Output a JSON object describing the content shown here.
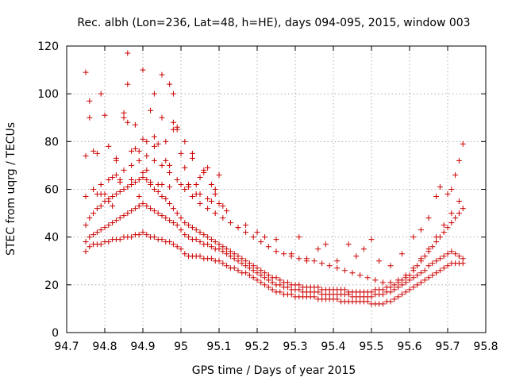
{
  "chart_data": {
    "type": "scatter",
    "title": "Rec. albh (Lon=236, Lat=48, h=HE), days 094-095, 2015, window 003",
    "xlabel": "GPS time / Days of year 2015",
    "ylabel": "STEC from uqrg / TECUs",
    "xlim": [
      94.7,
      95.8
    ],
    "ylim": [
      0,
      120
    ],
    "xticks": [
      "94.7",
      "94.8",
      "94.9",
      "95",
      "95.1",
      "95.2",
      "95.3",
      "95.4",
      "95.5",
      "95.6",
      "95.7",
      "95.8"
    ],
    "yticks": [
      "0",
      "20",
      "40",
      "60",
      "80",
      "100",
      "120"
    ],
    "grid": true,
    "marker": "+",
    "color": "#cc0000",
    "series": [
      {
        "x": [
          94.75,
          94.76,
          94.77,
          94.78,
          94.79,
          94.8,
          94.81,
          94.82,
          94.83,
          94.84,
          94.85,
          94.86,
          94.87,
          94.88,
          94.89,
          94.9,
          94.91,
          94.92,
          94.93,
          94.94,
          94.95,
          94.96,
          94.97,
          94.98,
          94.99,
          95.0,
          95.01,
          95.02,
          95.03,
          95.04,
          95.05,
          95.06,
          95.07,
          95.08,
          95.09,
          95.1,
          95.11,
          95.12,
          95.13,
          95.14,
          95.15,
          95.16,
          95.17,
          95.18,
          95.19,
          95.2,
          95.21,
          95.22,
          95.23,
          95.24,
          95.25,
          95.26,
          95.27,
          95.28,
          95.29,
          95.3,
          95.31,
          95.32,
          95.33,
          95.34,
          95.35,
          95.36,
          95.37,
          95.38,
          95.39,
          95.4,
          95.41,
          95.42,
          95.43,
          95.44,
          95.45,
          95.46,
          95.47,
          95.48,
          95.49,
          95.5,
          95.51,
          95.52,
          95.53,
          95.54,
          95.55,
          95.56,
          95.57,
          95.58,
          95.59,
          95.6,
          95.61,
          95.62,
          95.63,
          95.64,
          95.65,
          95.66,
          95.67,
          95.68,
          95.69,
          95.7,
          95.71,
          95.72,
          95.73,
          95.74
        ],
        "y": [
          34,
          36,
          37,
          37,
          37,
          38,
          38,
          39,
          39,
          39,
          40,
          40,
          40,
          41,
          41,
          42,
          41,
          40,
          40,
          39,
          39,
          38,
          38,
          37,
          36,
          35,
          33,
          32,
          32,
          32,
          32,
          31,
          31,
          31,
          30,
          30,
          29,
          28,
          27,
          27,
          26,
          25,
          25,
          24,
          23,
          22,
          21,
          20,
          19,
          18,
          17,
          17,
          16,
          16,
          16,
          15,
          15,
          15,
          15,
          15,
          15,
          14,
          14,
          14,
          14,
          14,
          14,
          13,
          13,
          13,
          13,
          13,
          13,
          13,
          13,
          12,
          12,
          12,
          12,
          13,
          13,
          14,
          15,
          16,
          17,
          18,
          19,
          20,
          21,
          22,
          23,
          24,
          25,
          26,
          27,
          28,
          29,
          29,
          29,
          29
        ]
      },
      {
        "x": [
          94.75,
          94.76,
          94.77,
          94.78,
          94.79,
          94.8,
          94.81,
          94.82,
          94.83,
          94.84,
          94.85,
          94.86,
          94.87,
          94.88,
          94.89,
          94.9,
          94.91,
          94.92,
          94.93,
          94.94,
          94.95,
          94.96,
          94.97,
          94.98,
          94.99,
          95.0,
          95.01,
          95.02,
          95.03,
          95.04,
          95.05,
          95.06,
          95.07,
          95.08,
          95.09,
          95.1,
          95.11,
          95.12,
          95.13,
          95.14,
          95.15,
          95.16,
          95.17,
          95.18,
          95.19,
          95.2,
          95.21,
          95.22,
          95.23,
          95.24,
          95.25,
          95.26,
          95.27,
          95.28,
          95.29,
          95.3,
          95.31,
          95.32,
          95.33,
          95.34,
          95.35,
          95.36,
          95.37,
          95.38,
          95.39,
          95.4,
          95.41,
          95.42,
          95.43,
          95.44,
          95.45,
          95.46,
          95.47,
          95.48,
          95.49,
          95.5,
          95.51,
          95.52,
          95.53,
          95.54,
          95.55,
          95.56,
          95.57,
          95.58,
          95.59,
          95.6,
          95.61,
          95.62,
          95.63,
          95.64,
          95.65,
          95.66,
          95.67,
          95.68,
          95.69,
          95.7,
          95.71,
          95.72,
          95.73,
          95.74
        ],
        "y": [
          38,
          40,
          41,
          42,
          43,
          44,
          45,
          46,
          47,
          48,
          49,
          50,
          51,
          52,
          53,
          54,
          53,
          52,
          51,
          50,
          49,
          48,
          47,
          46,
          45,
          43,
          41,
          40,
          39,
          39,
          38,
          37,
          37,
          36,
          35,
          35,
          34,
          33,
          32,
          31,
          30,
          29,
          28,
          27,
          26,
          25,
          24,
          23,
          22,
          21,
          20,
          20,
          19,
          19,
          18,
          18,
          18,
          17,
          17,
          17,
          17,
          17,
          16,
          16,
          16,
          16,
          16,
          16,
          16,
          16,
          15,
          15,
          15,
          15,
          15,
          15,
          16,
          16,
          16,
          17,
          17,
          18,
          19,
          20,
          21,
          22,
          23,
          24,
          25,
          26,
          28,
          29,
          30,
          31,
          32,
          33,
          34,
          33,
          32,
          31
        ]
      },
      {
        "x": [
          94.75,
          94.76,
          94.77,
          94.78,
          94.79,
          94.8,
          94.81,
          94.82,
          94.83,
          94.84,
          94.85,
          94.86,
          94.87,
          94.88,
          94.89,
          94.9,
          94.91,
          94.92,
          94.93,
          94.94,
          94.95,
          94.96,
          94.97,
          94.98,
          94.99,
          95.0,
          95.01,
          95.02,
          95.03,
          95.04,
          95.05,
          95.06,
          95.07,
          95.08,
          95.09,
          95.1,
          95.11,
          95.12,
          95.13,
          95.14,
          95.15,
          95.16,
          95.17,
          95.18,
          95.19,
          95.2,
          95.21,
          95.22,
          95.23,
          95.24,
          95.25,
          95.26,
          95.27,
          95.28,
          95.29,
          95.3,
          95.31,
          95.32,
          95.33,
          95.34,
          95.35,
          95.36,
          95.37,
          95.38,
          95.39,
          95.4,
          95.41,
          95.42,
          95.43,
          95.44,
          95.45,
          95.46,
          95.47,
          95.48,
          95.49,
          95.5,
          95.51,
          95.52,
          95.53,
          95.54,
          95.55,
          95.56,
          95.57,
          95.58,
          95.59,
          95.6,
          95.61,
          95.62,
          95.63,
          95.64,
          95.65,
          95.66,
          95.67,
          95.68,
          95.69,
          95.7,
          95.71,
          95.72,
          95.73,
          95.74
        ],
        "y": [
          45,
          48,
          50,
          52,
          53,
          55,
          56,
          57,
          58,
          59,
          60,
          61,
          62,
          63,
          64,
          65,
          64,
          62,
          60,
          59,
          57,
          56,
          54,
          52,
          50,
          48,
          46,
          45,
          44,
          43,
          42,
          41,
          40,
          39,
          38,
          37,
          36,
          35,
          34,
          33,
          32,
          31,
          30,
          29,
          28,
          27,
          26,
          25,
          24,
          23,
          23,
          22,
          21,
          21,
          20,
          20,
          20,
          19,
          19,
          19,
          19,
          19,
          18,
          18,
          18,
          18,
          18,
          18,
          18,
          17,
          17,
          17,
          17,
          17,
          17,
          17,
          18,
          18,
          18,
          19,
          19,
          20,
          21,
          22,
          23,
          24,
          26,
          28,
          30,
          32,
          34,
          36,
          38,
          40,
          42,
          44,
          46,
          48,
          50,
          52
        ]
      },
      {
        "x": [
          94.75,
          94.77,
          94.79,
          94.81,
          94.83,
          94.85,
          94.87,
          94.89,
          94.91,
          94.93,
          94.95,
          94.97,
          94.99,
          95.01,
          95.03,
          95.05,
          95.07,
          95.09,
          95.11,
          95.13,
          95.15,
          95.17,
          95.19,
          95.21,
          95.23,
          95.25,
          95.27,
          95.29,
          95.31,
          95.33,
          95.35,
          95.37,
          95.39,
          95.41,
          95.43,
          95.45,
          95.47,
          95.49,
          95.51,
          95.53,
          95.55,
          95.57,
          95.59,
          95.61,
          95.63,
          95.65,
          95.67,
          95.69,
          95.71,
          95.73
        ],
        "y": [
          57,
          60,
          62,
          64,
          66,
          68,
          70,
          72,
          74,
          72,
          70,
          67,
          64,
          60,
          57,
          54,
          52,
          50,
          48,
          46,
          44,
          42,
          40,
          38,
          36,
          34,
          33,
          32,
          31,
          30,
          30,
          29,
          28,
          27,
          26,
          25,
          24,
          23,
          22,
          21,
          21,
          22,
          24,
          27,
          31,
          35,
          40,
          45,
          50,
          55
        ]
      },
      {
        "x": [
          94.75,
          94.76,
          94.77,
          94.78,
          94.79,
          94.8,
          94.81,
          94.82,
          94.83,
          94.84,
          94.85,
          94.86,
          94.87,
          94.88,
          94.89,
          94.9,
          94.91,
          94.92,
          94.93,
          94.94,
          94.95,
          94.96,
          94.97,
          94.98,
          94.99,
          95.0,
          95.01,
          95.02,
          95.03,
          95.04,
          95.05,
          95.06,
          95.07,
          95.08,
          95.09,
          95.1
        ],
        "y": [
          74,
          97,
          76,
          75,
          100,
          91,
          78,
          65,
          73,
          63,
          92,
          88,
          76,
          87,
          57,
          110,
          68,
          93,
          82,
          79,
          108,
          80,
          70,
          88,
          85,
          75,
          80,
          62,
          73,
          58,
          65,
          68,
          69,
          55,
          58,
          54
        ]
      },
      {
        "x": [
          94.75,
          94.76,
          94.77,
          94.78,
          94.79,
          94.8,
          94.81,
          94.82,
          94.83,
          94.84,
          94.85,
          94.86,
          94.87,
          94.88,
          94.89,
          94.9,
          94.91,
          94.92,
          94.93,
          94.94,
          94.95,
          94.96,
          94.97,
          94.98,
          94.99,
          95.0,
          95.01,
          95.02,
          95.03,
          95.04,
          95.05,
          95.06,
          95.07,
          95.08,
          95.09,
          95.1,
          95.11,
          95.12
        ],
        "y": [
          109,
          90,
          60,
          58,
          58,
          58,
          55,
          53,
          72,
          64,
          90,
          104,
          64,
          77,
          53,
          67,
          80,
          63,
          100,
          62,
          90,
          72,
          104,
          85,
          86,
          62,
          69,
          61,
          75,
          62,
          58,
          67,
          56,
          62,
          60,
          66,
          53,
          51
        ]
      },
      {
        "x": [
          94.86,
          94.89,
          94.9,
          94.93,
          94.95,
          94.97,
          94.98
        ],
        "y": [
          117,
          76,
          81,
          78,
          62,
          61,
          100
        ]
      },
      {
        "x": [
          95.15,
          95.17,
          95.2,
          95.22,
          95.25,
          95.29,
          95.31,
          95.33,
          95.36,
          95.38,
          95.41,
          95.44,
          95.46,
          95.48,
          95.5,
          95.52,
          95.55,
          95.58,
          95.61,
          95.63,
          95.65,
          95.67,
          95.68,
          95.7,
          95.71,
          95.72,
          95.73,
          95.74
        ],
        "y": [
          44,
          45,
          42,
          40,
          39,
          33,
          40,
          31,
          35,
          37,
          30,
          37,
          32,
          35,
          39,
          30,
          28,
          33,
          40,
          43,
          48,
          57,
          61,
          58,
          60,
          66,
          72,
          79
        ]
      }
    ]
  }
}
